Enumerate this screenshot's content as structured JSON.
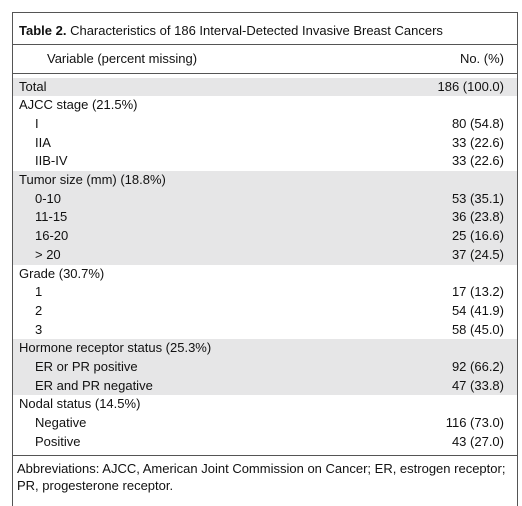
{
  "title": {
    "label": "Table 2.",
    "text": "Characteristics of 186 Interval-Detected Invasive Breast Cancers"
  },
  "header": [
    "Variable (percent missing)",
    "No. (%)"
  ],
  "groups": [
    {
      "heading": "Total",
      "value": "186 (100.0)",
      "items": []
    },
    {
      "heading": "AJCC stage (21.5%)",
      "items": [
        {
          "label": "I",
          "value": "80 (54.8)"
        },
        {
          "label": "IIA",
          "value": "33 (22.6)"
        },
        {
          "label": "IIB-IV",
          "value": "33 (22.6)"
        }
      ]
    },
    {
      "heading": "Tumor size (mm) (18.8%)",
      "items": [
        {
          "label": "0-10",
          "value": "53 (35.1)"
        },
        {
          "label": "11-15",
          "value": "36 (23.8)"
        },
        {
          "label": "16-20",
          "value": "25 (16.6)"
        },
        {
          "label": "> 20",
          "value": "37 (24.5)"
        }
      ]
    },
    {
      "heading": "Grade (30.7%)",
      "items": [
        {
          "label": "1",
          "value": "17 (13.2)"
        },
        {
          "label": "2",
          "value": "54 (41.9)"
        },
        {
          "label": "3",
          "value": "58 (45.0)"
        }
      ]
    },
    {
      "heading": "Hormone receptor status (25.3%)",
      "items": [
        {
          "label": "ER or PR positive",
          "value": "92 (66.2)"
        },
        {
          "label": "ER and PR negative",
          "value": "47 (33.8)"
        }
      ]
    },
    {
      "heading": "Nodal status (14.5%)",
      "items": [
        {
          "label": "Negative",
          "value": "116 (73.0)"
        },
        {
          "label": "Positive",
          "value": "43 (27.0)"
        }
      ]
    }
  ],
  "footnote": "Abbreviations: AJCC, American Joint Commission on Cancer; ER, estrogen receptor; PR, progesterone receptor."
}
